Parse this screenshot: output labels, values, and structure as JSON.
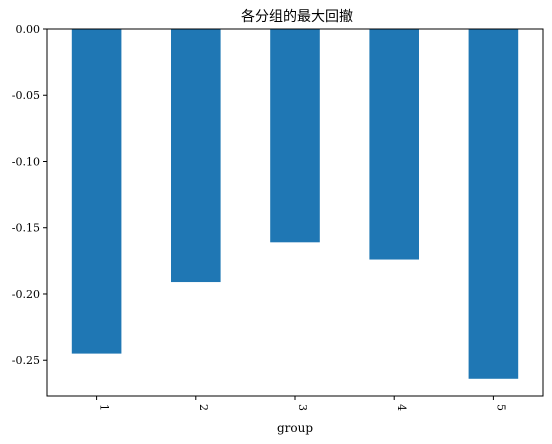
{
  "chart_data": {
    "type": "bar",
    "title": "各分组的最大回撤",
    "xlabel": "group",
    "ylabel": "",
    "categories": [
      "1",
      "2",
      "3",
      "4",
      "5"
    ],
    "values": [
      -0.245,
      -0.191,
      -0.161,
      -0.174,
      -0.264
    ],
    "ylim": [
      -0.277,
      0.0
    ],
    "yticks": [
      "0.00",
      "-0.05",
      "-0.10",
      "-0.15",
      "-0.20",
      "-0.25"
    ],
    "ytick_values": [
      0.0,
      -0.05,
      -0.1,
      -0.15,
      -0.2,
      -0.25
    ],
    "bar_color": "#1f77b4",
    "xtick_rotation": 90,
    "grid": false,
    "legend": "none"
  }
}
